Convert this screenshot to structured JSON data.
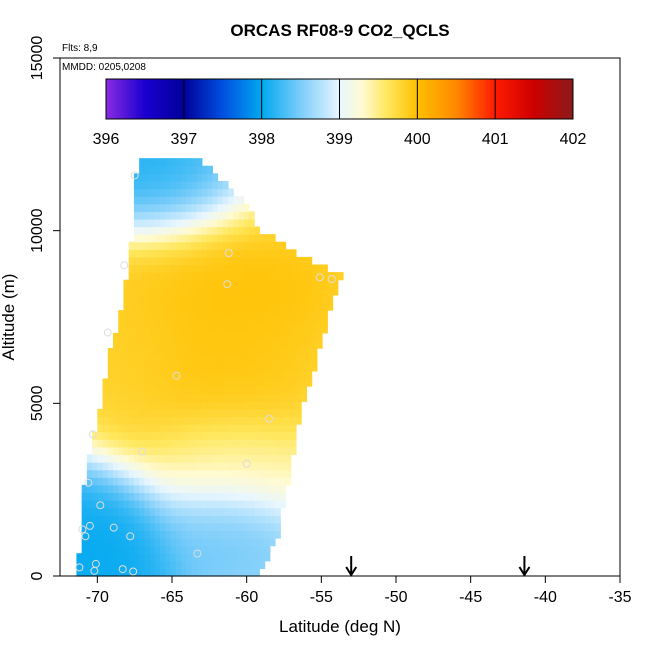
{
  "chart_data": {
    "type": "heatmap",
    "title": "ORCAS RF08-9 CO2_QCLS",
    "xlabel": "Latitude (deg N)",
    "ylabel": "Altitude (m)",
    "xlim": [
      -72.5,
      -35
    ],
    "ylim": [
      0,
      15000
    ],
    "xticks": [
      -70,
      -65,
      -60,
      -55,
      -50,
      -45,
      -40,
      -35
    ],
    "xtick_labels": [
      "-70",
      "-65",
      "-60",
      "-55",
      "-50",
      "-45",
      "-40",
      "-35"
    ],
    "yticks": [
      0,
      5000,
      10000,
      15000
    ],
    "ytick_labels": [
      "0",
      "5000",
      "10000",
      "15000"
    ],
    "annotations": {
      "flights": "Flts: 8,9",
      "dates": "MMDD: 0205,0208"
    },
    "colorbar": {
      "min": 396,
      "max": 402,
      "ticks": [
        396,
        397,
        398,
        399,
        400,
        401,
        402
      ],
      "tick_labels": [
        "396",
        "397",
        "398",
        "399",
        "400",
        "401",
        "402"
      ],
      "stops": [
        {
          "v": 396.0,
          "c": "#8a2be2"
        },
        {
          "v": 396.5,
          "c": "#1a00d0"
        },
        {
          "v": 397.0,
          "c": "#00009a"
        },
        {
          "v": 397.5,
          "c": "#0050e0"
        },
        {
          "v": 398.0,
          "c": "#00a8f0"
        },
        {
          "v": 398.5,
          "c": "#7ccdfa"
        },
        {
          "v": 399.0,
          "c": "#e8f6ff"
        },
        {
          "v": 399.3,
          "c": "#fffad0"
        },
        {
          "v": 399.6,
          "c": "#ffe860"
        },
        {
          "v": 400.0,
          "c": "#ffc000"
        },
        {
          "v": 400.5,
          "c": "#ff8800"
        },
        {
          "v": 401.0,
          "c": "#ff1a00"
        },
        {
          "v": 401.5,
          "c": "#cc0000"
        },
        {
          "v": 402.0,
          "c": "#8b1a1a"
        }
      ]
    },
    "field": {
      "lat_min": -71.4,
      "lat_max": -53.5,
      "alt_min": 0,
      "alt_max": 12000,
      "cell_lat": 0.35,
      "cell_alt": 220,
      "left_edge": [
        [
          0,
          -71.3
        ],
        [
          2500,
          -71.0
        ],
        [
          4500,
          -70.0
        ],
        [
          6000,
          -69.4
        ],
        [
          8000,
          -68.3
        ],
        [
          10000,
          -67.6
        ],
        [
          11500,
          -67.4
        ],
        [
          12000,
          -67.2
        ]
      ],
      "right_edge": [
        [
          0,
          -59.2
        ],
        [
          1000,
          -58.0
        ],
        [
          2500,
          -57.3
        ],
        [
          4500,
          -56.5
        ],
        [
          6000,
          -55.5
        ],
        [
          7500,
          -54.5
        ],
        [
          8700,
          -53.6
        ],
        [
          9300,
          -56.5
        ],
        [
          10000,
          -59.0
        ],
        [
          11000,
          -60.5
        ],
        [
          11700,
          -62.2
        ],
        [
          12000,
          -63.0
        ]
      ],
      "hotspots": [
        {
          "lat": -62.5,
          "alt": 7200,
          "v": 400.0,
          "r_lat": 8.5,
          "r_alt": 3400,
          "w": 1.0
        },
        {
          "lat": -59.0,
          "alt": 8400,
          "v": 400.0,
          "r_lat": 5.0,
          "r_alt": 1100,
          "w": 0.7
        },
        {
          "lat": -67.5,
          "alt": 6200,
          "v": 399.8,
          "r_lat": 3.0,
          "r_alt": 2200,
          "w": 0.6
        },
        {
          "lat": -61.5,
          "alt": 3200,
          "v": 399.3,
          "r_lat": 5.0,
          "r_alt": 1400,
          "w": 0.5
        },
        {
          "lat": -66.0,
          "alt": 11500,
          "v": 398.0,
          "r_lat": 5.0,
          "r_alt": 1500,
          "w": 0.9
        },
        {
          "lat": -70.0,
          "alt": 1000,
          "v": 398.0,
          "r_lat": 4.0,
          "r_alt": 1800,
          "w": 0.9
        },
        {
          "lat": -62.0,
          "alt": 1500,
          "v": 398.4,
          "r_lat": 4.0,
          "r_alt": 1200,
          "w": 0.5
        }
      ]
    },
    "sample_points": [
      {
        "lat": -67.5,
        "alt": 11600
      },
      {
        "lat": -68.2,
        "alt": 9000
      },
      {
        "lat": -61.2,
        "alt": 9350
      },
      {
        "lat": -61.3,
        "alt": 8450
      },
      {
        "lat": -55.1,
        "alt": 8650
      },
      {
        "lat": -54.3,
        "alt": 8600
      },
      {
        "lat": -69.3,
        "alt": 7050
      },
      {
        "lat": -64.7,
        "alt": 5800
      },
      {
        "lat": -58.5,
        "alt": 4550
      },
      {
        "lat": -70.3,
        "alt": 4100
      },
      {
        "lat": -67.0,
        "alt": 3600
      },
      {
        "lat": -60.0,
        "alt": 3250
      },
      {
        "lat": -70.6,
        "alt": 2700
      },
      {
        "lat": -69.8,
        "alt": 2050
      },
      {
        "lat": -70.5,
        "alt": 1450
      },
      {
        "lat": -71.0,
        "alt": 1350
      },
      {
        "lat": -70.8,
        "alt": 1150
      },
      {
        "lat": -68.9,
        "alt": 1400
      },
      {
        "lat": -67.8,
        "alt": 1150
      },
      {
        "lat": -63.3,
        "alt": 650
      },
      {
        "lat": -70.1,
        "alt": 350
      },
      {
        "lat": -70.2,
        "alt": 150
      },
      {
        "lat": -71.2,
        "alt": 250
      },
      {
        "lat": -68.3,
        "alt": 200
      },
      {
        "lat": -67.6,
        "alt": 130
      }
    ],
    "arrows": [
      {
        "lat": -53.0,
        "alt": 0
      },
      {
        "lat": -41.4,
        "alt": 0
      }
    ]
  }
}
